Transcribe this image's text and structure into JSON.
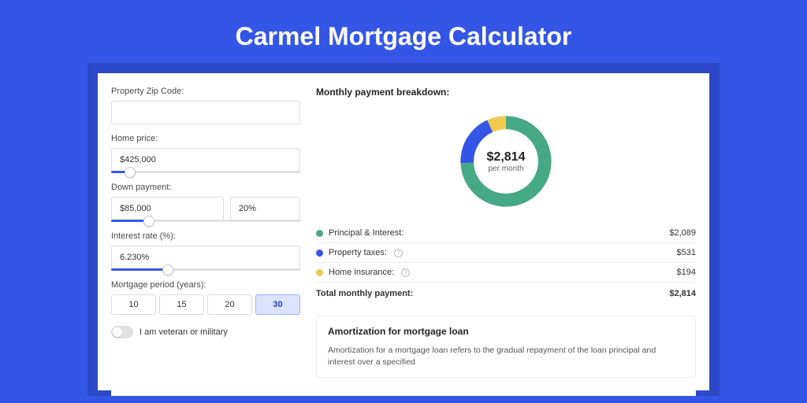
{
  "page": {
    "title": "Carmel Mortgage Calculator",
    "background_color": "#3456e6",
    "panel_border_color": "#2b49c8",
    "panel_background": "#ffffff"
  },
  "form": {
    "zip": {
      "label": "Property Zip Code:",
      "value": ""
    },
    "home_price": {
      "label": "Home price:",
      "value": "$425,000",
      "slider_percent": 10
    },
    "down_payment": {
      "label": "Down payment:",
      "amount": "$85,000",
      "percent": "20%",
      "slider_percent": 20
    },
    "interest_rate": {
      "label": "Interest rate (%):",
      "value": "6.230%",
      "slider_percent": 30
    },
    "period": {
      "label": "Mortgage period (years):",
      "options": [
        "10",
        "15",
        "20",
        "30"
      ],
      "selected": "30"
    },
    "veteran": {
      "label": "I am veteran or military",
      "checked": false
    }
  },
  "breakdown": {
    "title": "Monthly payment breakdown:",
    "center_value": "$2,814",
    "center_sub": "per month",
    "donut": {
      "size": 130,
      "stroke_width": 17,
      "background": "#ffffff",
      "segments": [
        {
          "key": "principal_interest",
          "color": "#46a985",
          "value": 2089
        },
        {
          "key": "property_taxes",
          "color": "#3456e6",
          "value": 531
        },
        {
          "key": "home_insurance",
          "color": "#f0c94e",
          "value": 194
        }
      ]
    },
    "rows": [
      {
        "label": "Principal & Interest:",
        "color": "#46a985",
        "amount": "$2,089",
        "info": false
      },
      {
        "label": "Property taxes:",
        "color": "#3456e6",
        "amount": "$531",
        "info": true
      },
      {
        "label": "Home insurance:",
        "color": "#f0c94e",
        "amount": "$194",
        "info": true
      }
    ],
    "total": {
      "label": "Total monthly payment:",
      "amount": "$2,814"
    }
  },
  "amortization": {
    "title": "Amortization for mortgage loan",
    "text": "Amortization for a mortgage loan refers to the gradual repayment of the loan principal and interest over a specified"
  }
}
